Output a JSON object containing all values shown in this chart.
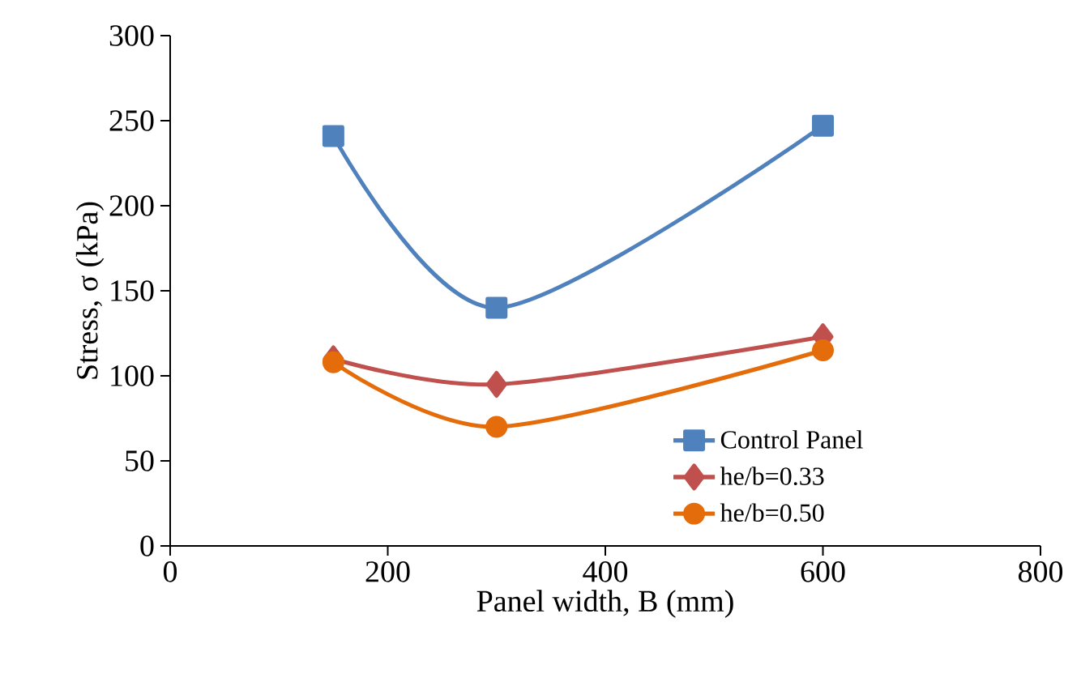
{
  "chart_data": {
    "type": "line",
    "xlabel": "Panel width, B (mm)",
    "ylabel": "Stress, σ (kPa)",
    "xlim": [
      0,
      800
    ],
    "xticks": [
      0,
      200,
      400,
      600,
      800
    ],
    "ylim": [
      0,
      300
    ],
    "yticks": [
      0,
      50,
      100,
      150,
      200,
      250,
      300
    ],
    "grid": false,
    "legend": "bottom right",
    "series": [
      {
        "name": "Control Panel",
        "color": "#4f81bd",
        "marker": "square",
        "x": [
          150,
          300,
          600
        ],
        "values": [
          241,
          140,
          247
        ]
      },
      {
        "name": "he/b=0.33",
        "color": "#c0504d",
        "marker": "diamond",
        "x": [
          150,
          300,
          600
        ],
        "values": [
          110,
          95,
          123
        ]
      },
      {
        "name": "he/b=0.50",
        "color": "#e46c0a",
        "marker": "circle",
        "x": [
          150,
          300,
          600
        ],
        "values": [
          108,
          70,
          115
        ]
      }
    ]
  }
}
